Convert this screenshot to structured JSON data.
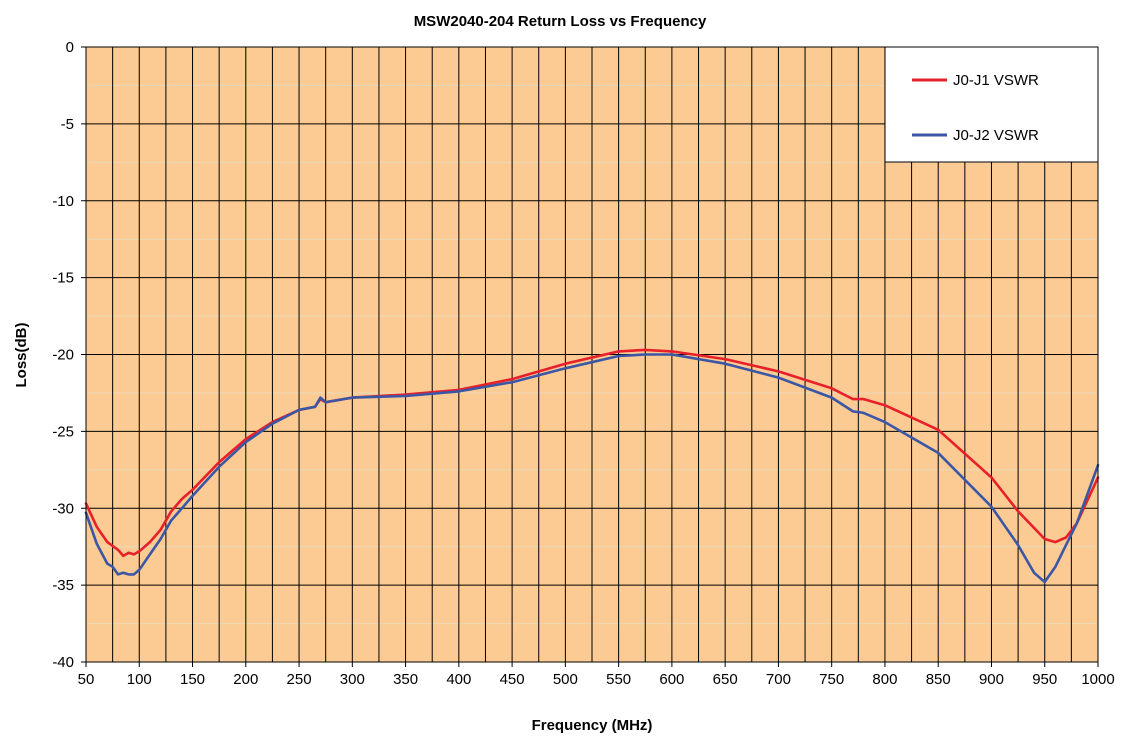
{
  "chart_data": {
    "type": "line",
    "title": "MSW2040-204 Return Loss vs Frequency",
    "xlabel": "Frequency (MHz)",
    "ylabel": "Loss(dB)",
    "xlim": [
      50,
      1000
    ],
    "ylim": [
      -40,
      0
    ],
    "x_ticks": [
      50,
      100,
      150,
      200,
      250,
      300,
      350,
      400,
      450,
      500,
      550,
      600,
      650,
      700,
      750,
      800,
      850,
      900,
      950,
      1000
    ],
    "x_tick_labels": [
      "50",
      "100",
      "150",
      "200",
      "250",
      "300",
      "350",
      "400",
      "450",
      "500",
      "550",
      "600",
      "650",
      "700",
      "750",
      "800",
      "850",
      "900",
      "950",
      "1000"
    ],
    "y_ticks": [
      0,
      -5,
      -10,
      -15,
      -20,
      -25,
      -30,
      -35,
      -40
    ],
    "y_tick_labels": [
      "0",
      "-5",
      "-10",
      "-15",
      "-20",
      "-25",
      "-30",
      "-35",
      "-40"
    ],
    "grid": true,
    "legend_position": "top-right",
    "plot_background": "#fbcb93",
    "series": [
      {
        "name": "J0-J1 VSWR",
        "color": "#e8202a",
        "x": [
          50,
          60,
          70,
          80,
          85,
          90,
          95,
          100,
          110,
          120,
          130,
          140,
          150,
          175,
          200,
          225,
          250,
          265,
          270,
          275,
          300,
          350,
          400,
          450,
          500,
          550,
          575,
          600,
          650,
          700,
          750,
          770,
          780,
          800,
          850,
          900,
          925,
          950,
          960,
          970,
          980,
          1000
        ],
        "y": [
          -29.7,
          -31.2,
          -32.2,
          -32.7,
          -33.1,
          -32.9,
          -33.0,
          -32.8,
          -32.2,
          -31.4,
          -30.2,
          -29.4,
          -28.8,
          -27.0,
          -25.5,
          -24.4,
          -23.6,
          -23.4,
          -22.9,
          -23.1,
          -22.8,
          -22.6,
          -22.3,
          -21.6,
          -20.6,
          -19.8,
          -19.7,
          -19.8,
          -20.3,
          -21.1,
          -22.2,
          -22.9,
          -22.9,
          -23.3,
          -24.9,
          -28.0,
          -30.2,
          -32.0,
          -32.2,
          -31.9,
          -31.0,
          -28.0
        ]
      },
      {
        "name": "J0-J2 VSWR",
        "color": "#3c56a6",
        "x": [
          50,
          60,
          70,
          75,
          80,
          85,
          90,
          95,
          100,
          110,
          120,
          130,
          140,
          150,
          175,
          200,
          225,
          250,
          265,
          270,
          275,
          300,
          350,
          400,
          450,
          500,
          550,
          575,
          600,
          650,
          700,
          750,
          770,
          780,
          800,
          850,
          900,
          925,
          940,
          950,
          960,
          970,
          980,
          1000
        ],
        "y": [
          -30.3,
          -32.3,
          -33.6,
          -33.8,
          -34.3,
          -34.2,
          -34.3,
          -34.3,
          -34.0,
          -33.0,
          -32.0,
          -30.8,
          -30.0,
          -29.2,
          -27.3,
          -25.7,
          -24.5,
          -23.6,
          -23.4,
          -22.8,
          -23.1,
          -22.8,
          -22.7,
          -22.4,
          -21.8,
          -20.9,
          -20.1,
          -20.0,
          -20.0,
          -20.6,
          -21.5,
          -22.8,
          -23.7,
          -23.8,
          -24.4,
          -26.4,
          -29.9,
          -32.4,
          -34.2,
          -34.8,
          -33.8,
          -32.4,
          -31.0,
          -27.2
        ]
      }
    ]
  }
}
